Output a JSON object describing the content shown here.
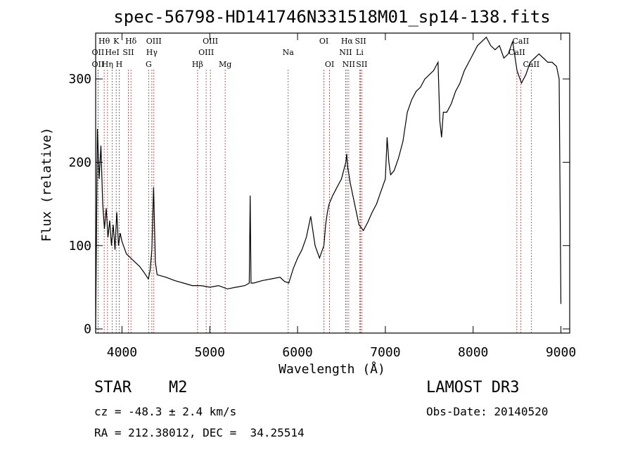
{
  "chart_data": {
    "type": "line",
    "title": "spec-56798-HD141746N331518M01_sp14-138.fits",
    "xlabel": "Wavelength (Å)",
    "ylabel": "Flux (relative)",
    "xlim": [
      3700,
      9100
    ],
    "ylim": [
      -5,
      355
    ],
    "xticks": [
      4000,
      5000,
      6000,
      7000,
      8000,
      9000
    ],
    "yticks": [
      0,
      100,
      200,
      300
    ],
    "series": [
      {
        "name": "flux",
        "x": [
          3700,
          3720,
          3740,
          3760,
          3780,
          3800,
          3820,
          3840,
          3860,
          3880,
          3900,
          3920,
          3940,
          3960,
          3980,
          4000,
          4050,
          4100,
          4150,
          4200,
          4250,
          4300,
          4320,
          4340,
          4360,
          4380,
          4400,
          4500,
          4600,
          4700,
          4800,
          4900,
          5000,
          5100,
          5200,
          5300,
          5400,
          5450,
          5460,
          5470,
          5500,
          5600,
          5700,
          5800,
          5850,
          5900,
          5950,
          6000,
          6050,
          6100,
          6150,
          6200,
          6250,
          6300,
          6320,
          6340,
          6360,
          6400,
          6450,
          6500,
          6550,
          6560,
          6570,
          6600,
          6650,
          6700,
          6750,
          6800,
          6850,
          6900,
          6950,
          7000,
          7020,
          7040,
          7060,
          7100,
          7150,
          7200,
          7250,
          7300,
          7350,
          7400,
          7450,
          7500,
          7550,
          7600,
          7620,
          7640,
          7660,
          7700,
          7750,
          7800,
          7850,
          7900,
          7950,
          8000,
          8050,
          8100,
          8150,
          8200,
          8250,
          8300,
          8350,
          8400,
          8450,
          8500,
          8550,
          8600,
          8650,
          8700,
          8750,
          8800,
          8850,
          8900,
          8950,
          8980,
          9000
        ],
        "y": [
          0,
          240,
          180,
          220,
          150,
          120,
          145,
          110,
          130,
          100,
          125,
          95,
          140,
          100,
          115,
          105,
          90,
          85,
          80,
          75,
          68,
          60,
          70,
          95,
          170,
          80,
          65,
          62,
          58,
          55,
          52,
          52,
          50,
          52,
          48,
          50,
          52,
          55,
          160,
          55,
          55,
          58,
          60,
          62,
          57,
          55,
          72,
          85,
          95,
          110,
          135,
          100,
          85,
          100,
          125,
          140,
          150,
          160,
          170,
          180,
          200,
          210,
          195,
          175,
          150,
          125,
          118,
          128,
          140,
          150,
          165,
          180,
          230,
          200,
          185,
          190,
          205,
          225,
          260,
          275,
          285,
          290,
          300,
          305,
          310,
          320,
          250,
          230,
          260,
          260,
          270,
          285,
          295,
          310,
          320,
          330,
          340,
          345,
          350,
          340,
          335,
          340,
          325,
          330,
          345,
          310,
          295,
          305,
          320,
          325,
          330,
          325,
          320,
          320,
          315,
          300,
          30
        ]
      }
    ],
    "spectral_lines": [
      {
        "label": "Hθ",
        "x": 3797,
        "row": 0
      },
      {
        "label": "OII",
        "x": 3727,
        "row": 1
      },
      {
        "label": "OII",
        "x": 3727,
        "row": 2
      },
      {
        "label": "K",
        "x": 3934,
        "row": 0
      },
      {
        "label": "HeI",
        "x": 3889,
        "row": 1
      },
      {
        "label": "Hη",
        "x": 3835,
        "row": 2
      },
      {
        "label": "SII",
        "x": 4072,
        "row": 1
      },
      {
        "label": "H",
        "x": 3968,
        "row": 2
      },
      {
        "label": "Hδ",
        "x": 4102,
        "row": 0
      },
      {
        "label": "OIII",
        "x": 4363,
        "row": 0
      },
      {
        "label": "Hγ",
        "x": 4340,
        "row": 1
      },
      {
        "label": "G",
        "x": 4304,
        "row": 2
      },
      {
        "label": "OIII",
        "x": 5007,
        "row": 0
      },
      {
        "label": "OIII",
        "x": 4959,
        "row": 1
      },
      {
        "label": "Hβ",
        "x": 4861,
        "row": 2
      },
      {
        "label": "Mg",
        "x": 5175,
        "row": 2
      },
      {
        "label": "Na",
        "x": 5893,
        "row": 1
      },
      {
        "label": "OI",
        "x": 6300,
        "row": 0
      },
      {
        "label": "OI",
        "x": 6364,
        "row": 2
      },
      {
        "label": "Hα",
        "x": 6563,
        "row": 0
      },
      {
        "label": "SII",
        "x": 6717,
        "row": 0
      },
      {
        "label": "NII",
        "x": 6548,
        "row": 1
      },
      {
        "label": "Li",
        "x": 6708,
        "row": 1
      },
      {
        "label": "NII",
        "x": 6583,
        "row": 2
      },
      {
        "label": "SII",
        "x": 6731,
        "row": 2
      },
      {
        "label": "CaII",
        "x": 8542,
        "row": 0
      },
      {
        "label": "CaII",
        "x": 8498,
        "row": 1
      },
      {
        "label": "CaII",
        "x": 8662,
        "row": 2
      }
    ]
  },
  "info": {
    "object_class": "STAR",
    "subclass": "M2",
    "survey": "LAMOST DR3",
    "redshift": "cz = -48.3 ± 2.4 km/s",
    "obs_date": "Obs-Date: 20140520",
    "coords": "RA = 212.38012, DEC =  34.25514"
  }
}
